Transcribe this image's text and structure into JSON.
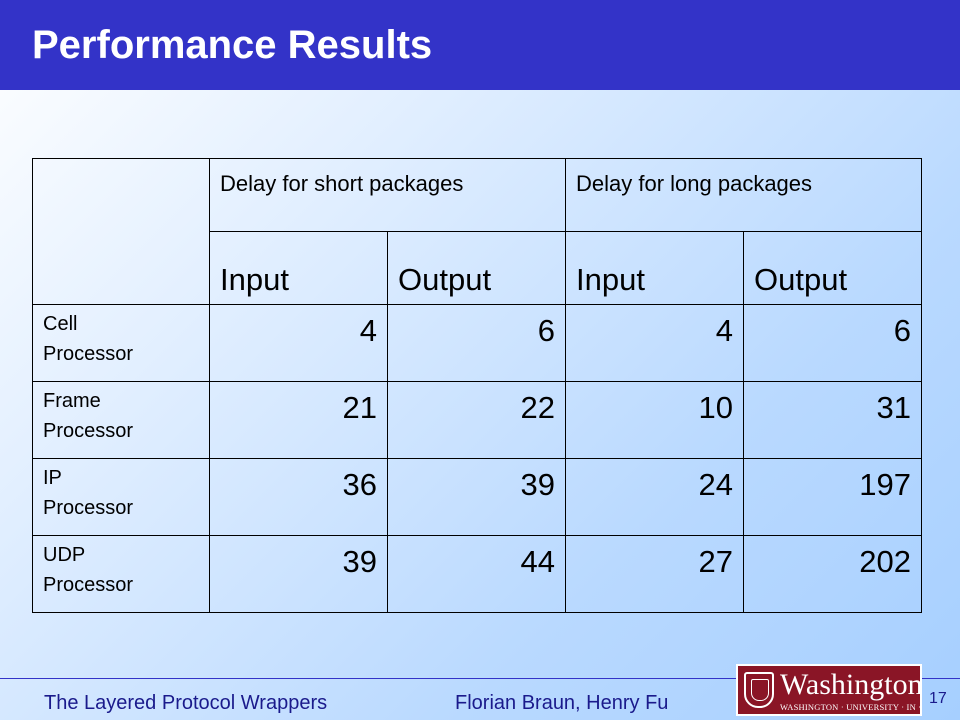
{
  "slide": {
    "title": "Performance Results"
  },
  "table": {
    "group_headers": [
      "Delay for short packages",
      "Delay for long packages"
    ],
    "sub_headers": [
      "Input",
      "Output",
      "Input",
      "Output"
    ],
    "rows": [
      {
        "label_line1": "Cell",
        "label_line2": "Processor",
        "values": [
          "4",
          "6",
          "4",
          "6"
        ]
      },
      {
        "label_line1": "Frame",
        "label_line2": "Processor",
        "values": [
          "21",
          "22",
          "10",
          "31"
        ]
      },
      {
        "label_line1": "IP",
        "label_line2": "Processor",
        "values": [
          "36",
          "39",
          "24",
          "197"
        ]
      },
      {
        "label_line1": "UDP",
        "label_line2": "Processor",
        "values": [
          "39",
          "44",
          "27",
          "202"
        ]
      }
    ]
  },
  "footer": {
    "left": "The Layered Protocol Wrappers",
    "authors": "Florian Braun, Henry Fu",
    "page_number": "17",
    "logo_text": "Washington",
    "logo_subtext": "WASHINGTON · UNIVERSITY · IN · ST · LOUIS"
  },
  "colors": {
    "title_bar": "#3333c8",
    "logo_bg": "#8a1526",
    "footer_text": "#1a1a8c"
  }
}
